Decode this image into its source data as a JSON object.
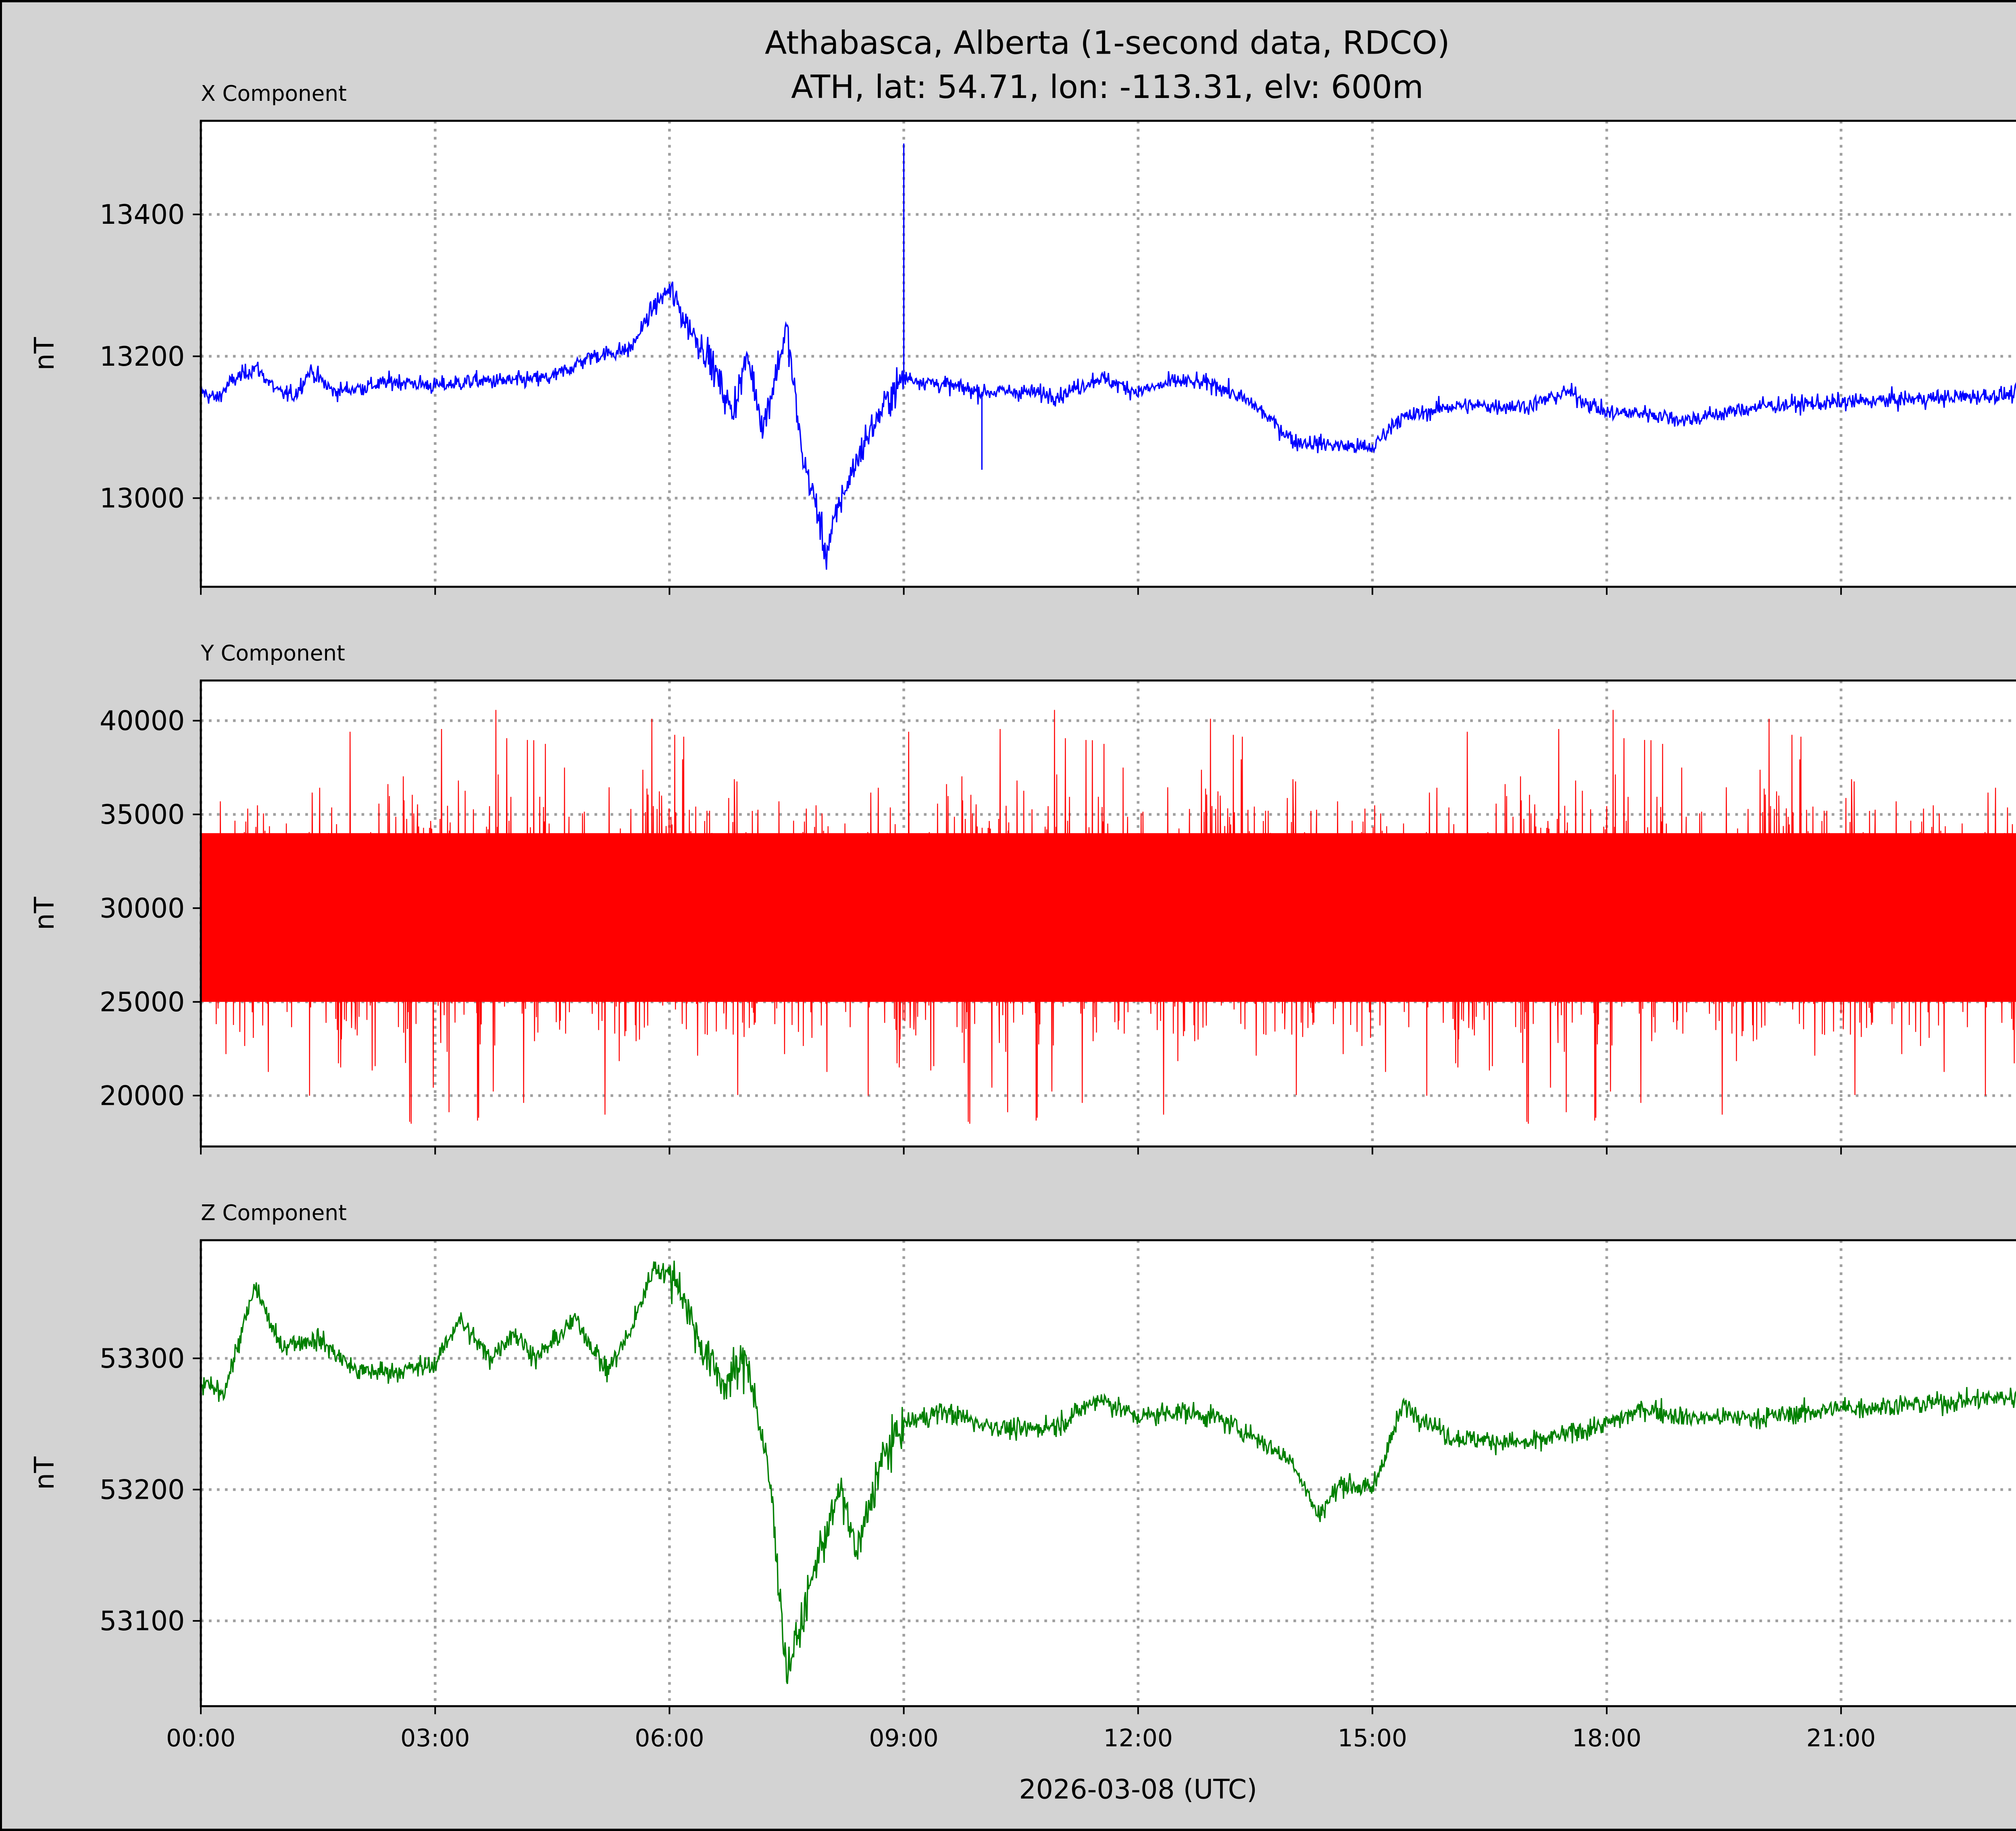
{
  "chart_data": {
    "type": "line",
    "title": "Athabasca, Alberta (1-second data, RDCO)",
    "subtitle": "ATH, lat: 54.71, lon: -113.31, elv: 600m",
    "xlabel": "2026-03-08 (UTC)",
    "x_unit": "hours",
    "xlim": [
      0,
      24
    ],
    "x_ticks": [
      0,
      3,
      6,
      9,
      12,
      15,
      18,
      21
    ],
    "x_tick_labels": [
      "00:00",
      "03:00",
      "06:00",
      "09:00",
      "12:00",
      "15:00",
      "18:00",
      "21:00"
    ],
    "grid": true,
    "panels": [
      {
        "title": "X Component",
        "ylabel": "nT",
        "color": "#0000ff",
        "ylim": [
          12875,
          13532
        ],
        "y_ticks": [
          13000,
          13200,
          13400
        ],
        "y_tick_labels": [
          "13000",
          "13200",
          "13400"
        ],
        "points": [
          [
            0,
            13150
          ],
          [
            0.2,
            13140
          ],
          [
            0.4,
            13165
          ],
          [
            0.7,
            13185
          ],
          [
            1.0,
            13148
          ],
          [
            1.2,
            13145
          ],
          [
            1.4,
            13180
          ],
          [
            1.7,
            13150
          ],
          [
            2.0,
            13155
          ],
          [
            2.5,
            13165
          ],
          [
            3.0,
            13158
          ],
          [
            3.5,
            13165
          ],
          [
            4.0,
            13165
          ],
          [
            4.5,
            13170
          ],
          [
            5.0,
            13200
          ],
          [
            5.5,
            13210
          ],
          [
            5.8,
            13270
          ],
          [
            6.0,
            13295
          ],
          [
            6.2,
            13250
          ],
          [
            6.5,
            13200
          ],
          [
            6.8,
            13120
          ],
          [
            7.0,
            13200
          ],
          [
            7.2,
            13100
          ],
          [
            7.5,
            13240
          ],
          [
            7.7,
            13060
          ],
          [
            7.9,
            12980
          ],
          [
            8.0,
            12920
          ],
          [
            8.2,
            13000
          ],
          [
            8.5,
            13080
          ],
          [
            8.8,
            13140
          ],
          [
            9.0,
            13170
          ],
          [
            9.5,
            13160
          ],
          [
            10.0,
            13150
          ],
          [
            10.5,
            13150
          ],
          [
            11.0,
            13145
          ],
          [
            11.5,
            13170
          ],
          [
            12.0,
            13150
          ],
          [
            12.5,
            13165
          ],
          [
            13.0,
            13160
          ],
          [
            13.5,
            13130
          ],
          [
            14.0,
            13080
          ],
          [
            14.5,
            13075
          ],
          [
            15.0,
            13070
          ],
          [
            15.3,
            13110
          ],
          [
            16.0,
            13130
          ],
          [
            17.0,
            13130
          ],
          [
            17.5,
            13150
          ],
          [
            18.0,
            13120
          ],
          [
            18.5,
            13120
          ],
          [
            19.0,
            13110
          ],
          [
            20.0,
            13130
          ],
          [
            21.0,
            13135
          ],
          [
            22.0,
            13140
          ],
          [
            23.0,
            13145
          ],
          [
            24.0,
            13150
          ]
        ],
        "spikes": [
          [
            9.0,
            13500
          ],
          [
            10.0,
            13040
          ]
        ],
        "noise_nT": 6
      },
      {
        "title": "Y Component",
        "ylabel": "nT",
        "color": "#ff0000",
        "ylim": [
          17286,
          42143
        ],
        "y_ticks": [
          20000,
          25000,
          30000,
          35000,
          40000
        ],
        "y_tick_labels": [
          "20000",
          "25000",
          "30000",
          "35000",
          "40000"
        ],
        "noise_center": 29500,
        "noise_typical_range": [
          23500,
          35500
        ],
        "noise_extremes": [
          18500,
          41000
        ]
      },
      {
        "title": "Z Component",
        "ylabel": "nT",
        "color": "#008000",
        "ylim": [
          53035,
          53390
        ],
        "y_ticks": [
          53100,
          53200,
          53300
        ],
        "y_tick_labels": [
          "53100",
          "53200",
          "53300"
        ],
        "points": [
          [
            0,
            53280
          ],
          [
            0.3,
            53275
          ],
          [
            0.7,
            53355
          ],
          [
            1.0,
            53310
          ],
          [
            1.5,
            53315
          ],
          [
            2.0,
            53290
          ],
          [
            2.5,
            53290
          ],
          [
            3.0,
            53295
          ],
          [
            3.3,
            53330
          ],
          [
            3.7,
            53300
          ],
          [
            4.0,
            53320
          ],
          [
            4.3,
            53300
          ],
          [
            4.8,
            53330
          ],
          [
            5.2,
            53290
          ],
          [
            5.5,
            53320
          ],
          [
            5.8,
            53370
          ],
          [
            6.1,
            53360
          ],
          [
            6.4,
            53310
          ],
          [
            6.7,
            53280
          ],
          [
            7.0,
            53300
          ],
          [
            7.3,
            53200
          ],
          [
            7.5,
            53060
          ],
          [
            7.7,
            53100
          ],
          [
            7.9,
            53150
          ],
          [
            8.2,
            53200
          ],
          [
            8.4,
            53150
          ],
          [
            8.7,
            53220
          ],
          [
            9.0,
            53250
          ],
          [
            9.5,
            53260
          ],
          [
            10.0,
            53250
          ],
          [
            10.5,
            53245
          ],
          [
            11.0,
            53250
          ],
          [
            11.5,
            53270
          ],
          [
            12.0,
            53255
          ],
          [
            12.5,
            53260
          ],
          [
            13.0,
            53255
          ],
          [
            13.5,
            53240
          ],
          [
            14.0,
            53220
          ],
          [
            14.3,
            53180
          ],
          [
            14.6,
            53205
          ],
          [
            15.0,
            53200
          ],
          [
            15.4,
            53265
          ],
          [
            16.0,
            53240
          ],
          [
            17.0,
            53235
          ],
          [
            18.0,
            53250
          ],
          [
            18.5,
            53262
          ],
          [
            19.0,
            53255
          ],
          [
            20.0,
            53255
          ],
          [
            21.0,
            53262
          ],
          [
            22.0,
            53265
          ],
          [
            23.0,
            53270
          ],
          [
            24.0,
            53270
          ]
        ],
        "noise_nT": 4
      }
    ]
  }
}
